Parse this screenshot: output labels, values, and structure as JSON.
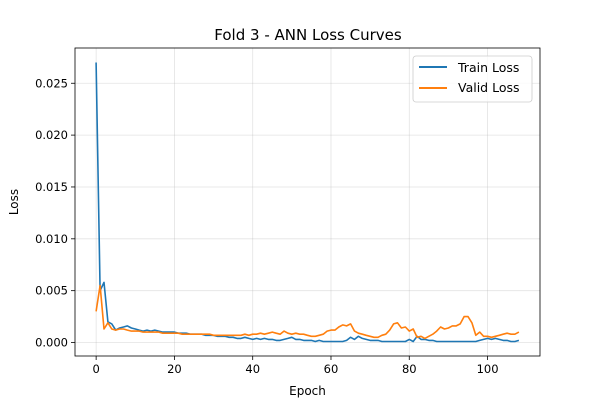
{
  "chart_data": {
    "type": "line",
    "title": "Fold 3 - ANN Loss Curves",
    "xlabel": "Epoch",
    "ylabel": "Loss",
    "xlim": [
      -5.4,
      113.4
    ],
    "ylim": [
      -0.0013,
      0.0284
    ],
    "xticks": [
      0,
      20,
      40,
      60,
      80,
      100
    ],
    "yticks": [
      0.0,
      0.005,
      0.01,
      0.015,
      0.02,
      0.025
    ],
    "ytick_labels": [
      "0.000",
      "0.005",
      "0.010",
      "0.015",
      "0.020",
      "0.025"
    ],
    "grid": true,
    "legend_position": "upper right",
    "series": [
      {
        "name": "Train Loss",
        "color": "#1f77b4",
        "x": [
          0,
          1,
          2,
          3,
          4,
          5,
          6,
          7,
          8,
          9,
          10,
          11,
          12,
          13,
          14,
          15,
          16,
          17,
          18,
          19,
          20,
          21,
          22,
          23,
          24,
          25,
          26,
          27,
          28,
          29,
          30,
          31,
          32,
          33,
          34,
          35,
          36,
          37,
          38,
          39,
          40,
          41,
          42,
          43,
          44,
          45,
          46,
          47,
          48,
          49,
          50,
          51,
          52,
          53,
          54,
          55,
          56,
          57,
          58,
          59,
          60,
          61,
          62,
          63,
          64,
          65,
          66,
          67,
          68,
          69,
          70,
          71,
          72,
          73,
          74,
          75,
          76,
          77,
          78,
          79,
          80,
          81,
          82,
          83,
          84,
          85,
          86,
          87,
          88,
          89,
          90,
          91,
          92,
          93,
          94,
          95,
          96,
          97,
          98,
          99,
          100,
          101,
          102,
          103,
          104,
          105,
          106,
          107,
          108
        ],
        "y": [
          0.027,
          0.005,
          0.0058,
          0.002,
          0.0018,
          0.0012,
          0.0014,
          0.0015,
          0.0016,
          0.0014,
          0.0013,
          0.0012,
          0.0011,
          0.0012,
          0.0011,
          0.0012,
          0.0011,
          0.001,
          0.001,
          0.001,
          0.001,
          0.0009,
          0.0009,
          0.0009,
          0.0008,
          0.0008,
          0.0008,
          0.0008,
          0.0007,
          0.0007,
          0.0007,
          0.0006,
          0.0006,
          0.0006,
          0.0005,
          0.0005,
          0.0004,
          0.0004,
          0.0005,
          0.0004,
          0.0003,
          0.0004,
          0.0003,
          0.0004,
          0.0003,
          0.0003,
          0.0002,
          0.0002,
          0.0003,
          0.0004,
          0.0005,
          0.0003,
          0.0003,
          0.0002,
          0.0002,
          0.0002,
          0.0001,
          0.0002,
          0.0001,
          0.0001,
          0.0001,
          0.0001,
          0.0001,
          0.0001,
          0.0002,
          0.0005,
          0.0003,
          0.0006,
          0.0004,
          0.0003,
          0.0002,
          0.0002,
          0.0002,
          0.0001,
          0.0001,
          0.0001,
          0.0001,
          0.0001,
          0.0001,
          0.0001,
          0.0003,
          0.0001,
          0.0006,
          0.0003,
          0.0003,
          0.0002,
          0.0002,
          0.0001,
          0.0001,
          0.0001,
          0.0001,
          0.0001,
          0.0001,
          0.0001,
          0.0001,
          0.0001,
          0.0001,
          0.0001,
          0.0002,
          0.0003,
          0.0004,
          0.0003,
          0.0004,
          0.0003,
          0.0002,
          0.0002,
          0.0001,
          0.0001,
          0.0002
        ]
      },
      {
        "name": "Valid Loss",
        "color": "#ff7f0e",
        "x": [
          0,
          1,
          2,
          3,
          4,
          5,
          6,
          7,
          8,
          9,
          10,
          11,
          12,
          13,
          14,
          15,
          16,
          17,
          18,
          19,
          20,
          21,
          22,
          23,
          24,
          25,
          26,
          27,
          28,
          29,
          30,
          31,
          32,
          33,
          34,
          35,
          36,
          37,
          38,
          39,
          40,
          41,
          42,
          43,
          44,
          45,
          46,
          47,
          48,
          49,
          50,
          51,
          52,
          53,
          54,
          55,
          56,
          57,
          58,
          59,
          60,
          61,
          62,
          63,
          64,
          65,
          66,
          67,
          68,
          69,
          70,
          71,
          72,
          73,
          74,
          75,
          76,
          77,
          78,
          79,
          80,
          81,
          82,
          83,
          84,
          85,
          86,
          87,
          88,
          89,
          90,
          91,
          92,
          93,
          94,
          95,
          96,
          97,
          98,
          99,
          100,
          101,
          102,
          103,
          104,
          105,
          106,
          107,
          108
        ],
        "y": [
          0.003,
          0.0055,
          0.0013,
          0.0019,
          0.0013,
          0.0012,
          0.0013,
          0.0013,
          0.0012,
          0.0011,
          0.0011,
          0.0011,
          0.001,
          0.001,
          0.001,
          0.001,
          0.001,
          0.0009,
          0.0009,
          0.0009,
          0.0009,
          0.0009,
          0.0008,
          0.0008,
          0.0008,
          0.0008,
          0.0008,
          0.0008,
          0.0008,
          0.0008,
          0.0007,
          0.0007,
          0.0007,
          0.0007,
          0.0007,
          0.0007,
          0.0007,
          0.0007,
          0.0008,
          0.0007,
          0.0008,
          0.0008,
          0.0009,
          0.0008,
          0.0009,
          0.001,
          0.0009,
          0.0008,
          0.0011,
          0.0009,
          0.0008,
          0.0009,
          0.0008,
          0.0008,
          0.0007,
          0.0006,
          0.0006,
          0.0007,
          0.0008,
          0.0011,
          0.0012,
          0.0012,
          0.0015,
          0.0017,
          0.0016,
          0.0018,
          0.0011,
          0.0009,
          0.0008,
          0.0007,
          0.0006,
          0.0005,
          0.0005,
          0.0007,
          0.0008,
          0.0012,
          0.0018,
          0.0019,
          0.0014,
          0.0015,
          0.0011,
          0.0013,
          0.0005,
          0.0006,
          0.0004,
          0.0006,
          0.0008,
          0.0011,
          0.0015,
          0.0013,
          0.0014,
          0.0016,
          0.0016,
          0.0018,
          0.0025,
          0.0025,
          0.0019,
          0.0007,
          0.001,
          0.0006,
          0.0006,
          0.0005,
          0.0006,
          0.0007,
          0.0008,
          0.0009,
          0.0008,
          0.0008,
          0.001
        ]
      }
    ]
  }
}
